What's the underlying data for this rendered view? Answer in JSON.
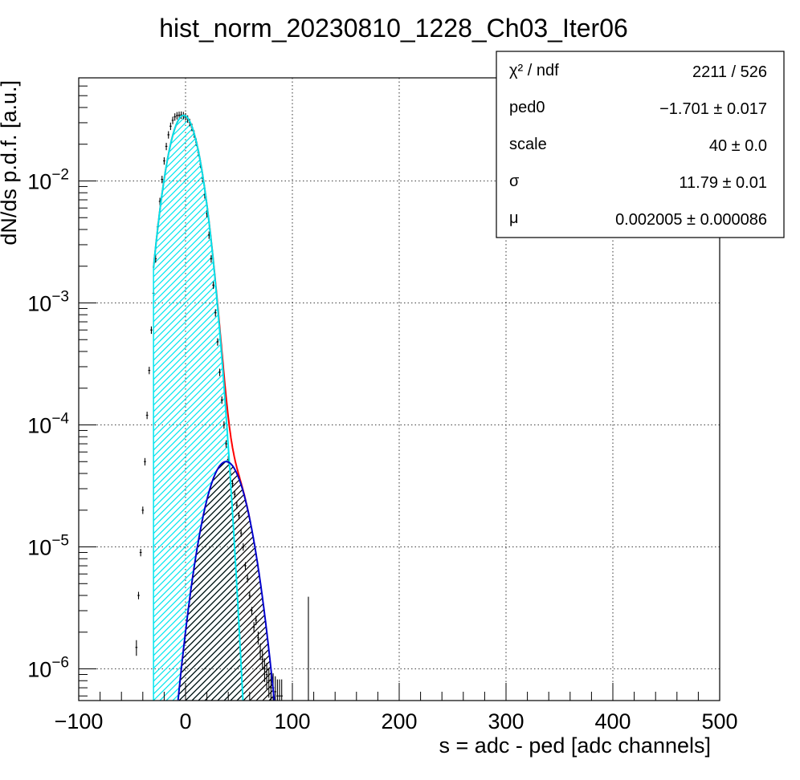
{
  "chart_data": {
    "type": "scatter",
    "title": "hist_norm_20230810_1228_Ch03_Iter06",
    "xlabel": "s = adc - ped [adc channels]",
    "ylabel": "dN/ds p.d.f. [a.u.]",
    "xlim": [
      -100,
      500
    ],
    "ylim": [
      5.5e-07,
      0.07
    ],
    "yscale": "log",
    "grid": true,
    "x_ticks": [
      "−100",
      "0",
      "100",
      "200",
      "300",
      "400",
      "500"
    ],
    "x_tick_values": [
      -100,
      0,
      100,
      200,
      300,
      400,
      500
    ],
    "y_ticks": [
      {
        "value": 1e-06,
        "base": "10",
        "exp": "−6"
      },
      {
        "value": 1e-05,
        "base": "10",
        "exp": "−5"
      },
      {
        "value": 0.0001,
        "base": "10",
        "exp": "−4"
      },
      {
        "value": 0.001,
        "base": "10",
        "exp": "−3"
      },
      {
        "value": 0.01,
        "base": "10",
        "exp": "−2"
      }
    ],
    "stats_box": {
      "position": "top-right",
      "rows": [
        {
          "label": "χ² / ndf",
          "value": "2211 / 526"
        },
        {
          "label": "ped0",
          "value": "−1.701 ± 0.017"
        },
        {
          "label": "scale",
          "value": "40  ± 0.0"
        },
        {
          "label": "σ",
          "value": "11.79 ± 0.01"
        },
        {
          "label": "μ",
          "value": "0.002005 ± 0.000086"
        }
      ]
    },
    "series": [
      {
        "kind": "histogram",
        "color": "#000000",
        "x": [
          -46,
          -44,
          -42,
          -40,
          -38,
          -36,
          -34,
          -32,
          -30,
          -28,
          -26,
          -24,
          -22,
          -20,
          -18,
          -16,
          -14,
          -12,
          -10,
          -8,
          -6,
          -4,
          -2,
          0,
          2,
          4,
          6,
          8,
          10,
          12,
          14,
          16,
          18,
          20,
          22,
          24,
          26,
          28,
          30,
          32,
          34,
          36,
          38,
          40,
          42,
          44,
          46,
          48,
          50,
          52,
          54,
          56,
          58,
          60,
          62,
          64,
          66,
          68,
          70,
          72,
          74,
          76,
          78,
          80,
          82,
          84,
          86,
          88,
          90
        ],
        "values": [
          1.5e-06,
          4e-06,
          9e-06,
          2e-05,
          5e-05,
          0.00012,
          0.00028,
          0.0006,
          0.0012,
          0.0023,
          0.0042,
          0.0068,
          0.0103,
          0.0146,
          0.0192,
          0.0239,
          0.0281,
          0.0314,
          0.0335,
          0.0343,
          0.0346,
          0.0347,
          0.0344,
          0.0336,
          0.0322,
          0.0301,
          0.0275,
          0.0243,
          0.0208,
          0.0172,
          0.0137,
          0.0105,
          0.0077,
          0.0054,
          0.0036,
          0.0023,
          0.0014,
          0.00083,
          0.00048,
          0.00027,
          0.00016,
          0.0001,
          7e-05,
          5.2e-05,
          4e-05,
          3.3e-05,
          2.7e-05,
          2.2e-05,
          1.8e-05,
          1.3e-05,
          1e-05,
          7e-06,
          5.5e-06,
          4e-06,
          3e-06,
          2.2e-06,
          2.5e-06,
          1.8e-06,
          1.4e-06,
          1.2e-06,
          1e-06,
          9e-07,
          8e-07,
          7e-07,
          7e-07,
          6.5e-07,
          6e-07,
          6e-07,
          6e-07
        ]
      },
      {
        "kind": "pedestal-gaussian",
        "color": "#00e5ee",
        "fill": "hatched",
        "x_range": [
          -30,
          54
        ],
        "center": -1.701,
        "sigma": 11.79,
        "amplitude": 0.0345
      },
      {
        "kind": "single-photoelectron",
        "color": "#0000cc",
        "fill": "hatched",
        "x_range": [
          -7,
          91
        ],
        "center": 38,
        "sigma": 15,
        "amplitude": 5e-05
      },
      {
        "kind": "total-fit",
        "color": "#ff0000",
        "x_range": [
          -30,
          60
        ]
      }
    ]
  }
}
